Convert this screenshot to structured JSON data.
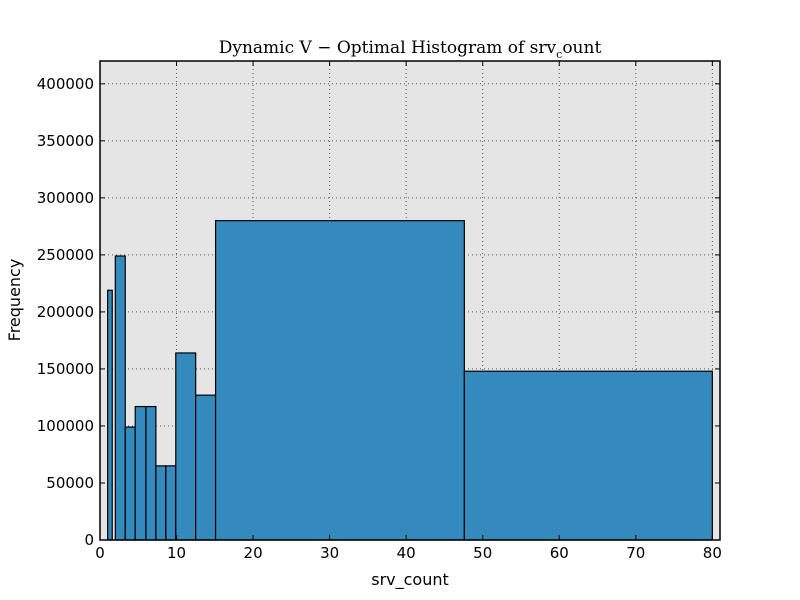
{
  "chart_data": {
    "type": "bar",
    "title": "Dynamic V − Optimal Histogram of srv",
    "title_subscript": "c",
    "title_suffix": "ount",
    "xlabel": "srv_count",
    "ylabel": "Frequency",
    "xlim": [
      0,
      81
    ],
    "ylim": [
      0,
      420000
    ],
    "xticks": [
      0,
      10,
      20,
      30,
      40,
      50,
      60,
      70,
      80
    ],
    "yticks": [
      0,
      50000,
      100000,
      150000,
      200000,
      250000,
      300000,
      350000,
      400000
    ],
    "grid": true,
    "bars": [
      {
        "x0": 1.0,
        "x1": 1.6,
        "value": 219000
      },
      {
        "x0": 2.0,
        "x1": 3.3,
        "value": 249000
      },
      {
        "x0": 3.3,
        "x1": 4.6,
        "value": 99000
      },
      {
        "x0": 4.6,
        "x1": 6.0,
        "value": 117000
      },
      {
        "x0": 6.0,
        "x1": 7.3,
        "value": 117000
      },
      {
        "x0": 7.3,
        "x1": 8.6,
        "value": 65000
      },
      {
        "x0": 8.6,
        "x1": 9.9,
        "value": 65000
      },
      {
        "x0": 9.9,
        "x1": 12.5,
        "value": 164000
      },
      {
        "x0": 12.5,
        "x1": 15.1,
        "value": 127000
      },
      {
        "x0": 15.1,
        "x1": 47.6,
        "value": 280000
      },
      {
        "x0": 47.6,
        "x1": 80.0,
        "value": 148000
      }
    ],
    "colors": {
      "bar_fill": "#348ABD",
      "bar_edge": "#000000",
      "plot_background": "#E5E5E5",
      "grid": "#555555"
    }
  }
}
